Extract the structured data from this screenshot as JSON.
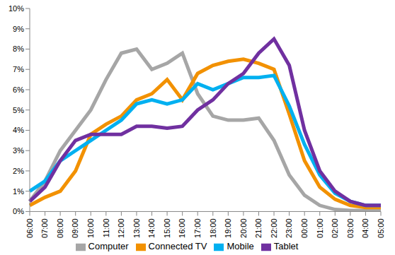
{
  "chart_data": {
    "type": "line",
    "categories": [
      "06:00",
      "07:00",
      "08:00",
      "09:00",
      "10:00",
      "11:00",
      "12:00",
      "13:00",
      "14:00",
      "15:00",
      "16:00",
      "17:00",
      "18:00",
      "19:00",
      "20:00",
      "21:00",
      "22:00",
      "23:00",
      "00:00",
      "01:00",
      "02:00",
      "03:00",
      "04:00",
      "05:00"
    ],
    "series": [
      {
        "name": "Computer",
        "color": "#a6a6a6",
        "values": [
          0.5,
          1.5,
          3,
          4,
          5,
          6.5,
          7.8,
          8,
          7,
          7.3,
          7.8,
          5.8,
          4.7,
          4.5,
          4.5,
          4.6,
          3.5,
          1.8,
          0.8,
          0.3,
          0.1,
          0.05,
          0.05,
          0.05
        ]
      },
      {
        "name": "Connected TV",
        "color": "#f29100",
        "values": [
          0.3,
          0.7,
          1.0,
          2,
          3.8,
          4.3,
          4.7,
          5.5,
          5.8,
          6.5,
          5.5,
          6.8,
          7.2,
          7.4,
          7.5,
          7.3,
          7.0,
          4.8,
          2.5,
          1.2,
          0.6,
          0.3,
          0.2,
          0.2
        ]
      },
      {
        "name": "Mobile",
        "color": "#00b0f0",
        "values": [
          1.0,
          1.5,
          2.5,
          3,
          3.5,
          4,
          4.5,
          5.3,
          5.5,
          5.3,
          5.5,
          6.3,
          6.0,
          6.3,
          6.6,
          6.6,
          6.7,
          5.2,
          3.3,
          1.8,
          0.9,
          0.5,
          0.3,
          0.3
        ]
      },
      {
        "name": "Tablet",
        "color": "#7030a0",
        "values": [
          0.5,
          1.2,
          2.5,
          3.5,
          3.8,
          3.8,
          3.8,
          4.2,
          4.2,
          4.1,
          4.2,
          5.0,
          5.5,
          6.3,
          6.8,
          7.8,
          8.5,
          7.2,
          4.0,
          2.0,
          1.0,
          0.5,
          0.3,
          0.3
        ]
      }
    ],
    "ylim": [
      0,
      10
    ],
    "yticks": [
      {
        "value": 0,
        "label": "0%"
      },
      {
        "value": 1,
        "label": "1%"
      },
      {
        "value": 2,
        "label": "2%"
      },
      {
        "value": 3,
        "label": "3%"
      },
      {
        "value": 4,
        "label": "4%"
      },
      {
        "value": 5,
        "label": "5%"
      },
      {
        "value": 6,
        "label": "6%"
      },
      {
        "value": 7,
        "label": "7%"
      },
      {
        "value": 8,
        "label": "8%"
      },
      {
        "value": 9,
        "label": "9%"
      },
      {
        "value": 10,
        "label": "10%"
      }
    ],
    "grid": false,
    "legend": "bottom"
  }
}
